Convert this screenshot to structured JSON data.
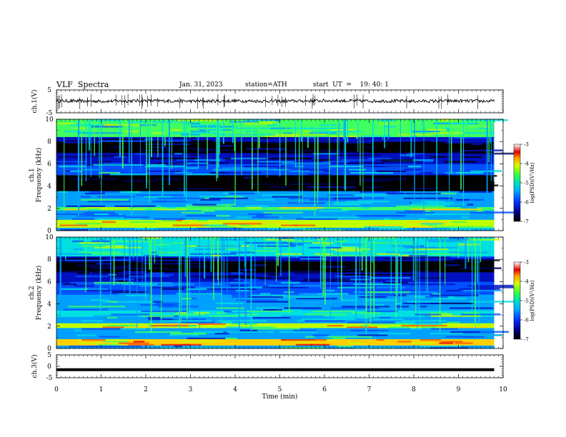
{
  "header": {
    "title": "VLF  Spectra",
    "date": "Jan. 31, 2023",
    "station": "station=ATH",
    "start_ut": "start  UT  =    19: 40: 1"
  },
  "colors": {
    "spectrogram_scale": [
      "#000000",
      "#000060",
      "#0010c0",
      "#0050ff",
      "#00a0ff",
      "#00e0e0",
      "#40ff60",
      "#c0ff00",
      "#ffd000",
      "#ff5000",
      "#e00000",
      "#ffffff"
    ],
    "trace": "#000000"
  },
  "chart_data": [
    {
      "type": "line",
      "panel": "waveform-ch1",
      "ylabel": "ch.1(V)",
      "ylim": [
        -5,
        5
      ],
      "yticks": [
        "5",
        "-5"
      ],
      "description_series": "ch.1 waveform envelope",
      "x": [
        0,
        1,
        2,
        3,
        4,
        5,
        6,
        7,
        8,
        9,
        9.8
      ],
      "y": [
        0.2,
        0.1,
        0.3,
        0.1,
        0.2,
        0.1,
        0.3,
        0.2,
        0.1,
        0.2,
        0.1
      ]
    },
    {
      "type": "heatmap",
      "panel": "spectrogram-ch1",
      "ylabel": "ch.1\nFrequency  (kHz)",
      "ylim": [
        0,
        10
      ],
      "yticks": [
        "0",
        "2",
        "4",
        "6",
        "8",
        "10"
      ],
      "colorbar": {
        "label": "log(PSD)(V²/Hz)",
        "range": [
          -7,
          -3
        ],
        "ticks": [
          "-3",
          "-4",
          "-5",
          "-6",
          "-7"
        ]
      },
      "bands_khz": [
        {
          "f0": 0.3,
          "f1": 1.0,
          "level": -4.2
        },
        {
          "f0": 1.8,
          "f1": 2.2,
          "level": -4.6
        },
        {
          "f0": 3.6,
          "f1": 5.0,
          "level": -7.0
        },
        {
          "f0": 7.0,
          "f1": 8.0,
          "level": -6.8
        },
        {
          "f0": 8.5,
          "f1": 10.0,
          "level": -4.8
        }
      ]
    },
    {
      "type": "heatmap",
      "panel": "spectrogram-ch2",
      "ylabel": "ch.2\nFrequency  (kHz)",
      "ylim": [
        0,
        10
      ],
      "yticks": [
        "0",
        "2",
        "4",
        "6",
        "8",
        "10"
      ],
      "colorbar": {
        "label": "log(PSD)(V²/Hz)",
        "range": [
          -7,
          -3
        ],
        "ticks": [
          "-3",
          "-4",
          "-5",
          "-6",
          "-7"
        ]
      },
      "bands_khz": [
        {
          "f0": 0.3,
          "f1": 0.8,
          "level": -3.8
        },
        {
          "f0": 1.8,
          "f1": 2.3,
          "level": -4.2
        },
        {
          "f0": 2.8,
          "f1": 3.4,
          "level": -5.0
        },
        {
          "f0": 6.8,
          "f1": 7.8,
          "level": -6.8
        },
        {
          "f0": 8.3,
          "f1": 10.0,
          "level": -5.0
        }
      ]
    },
    {
      "type": "line",
      "panel": "waveform-ch3",
      "ylabel": "ch.3(V)",
      "ylim": [
        -5,
        5
      ],
      "yticks": [
        "5",
        "0",
        "-5"
      ],
      "x": [
        0,
        9.8
      ],
      "y": [
        -1.5,
        -1.5
      ]
    }
  ],
  "xaxis": {
    "label": "Time  (min)",
    "ticks": [
      "0",
      "1",
      "2",
      "3",
      "4",
      "5",
      "6",
      "7",
      "8",
      "9",
      "10"
    ],
    "range": [
      0,
      10
    ],
    "data_end": 9.8
  }
}
